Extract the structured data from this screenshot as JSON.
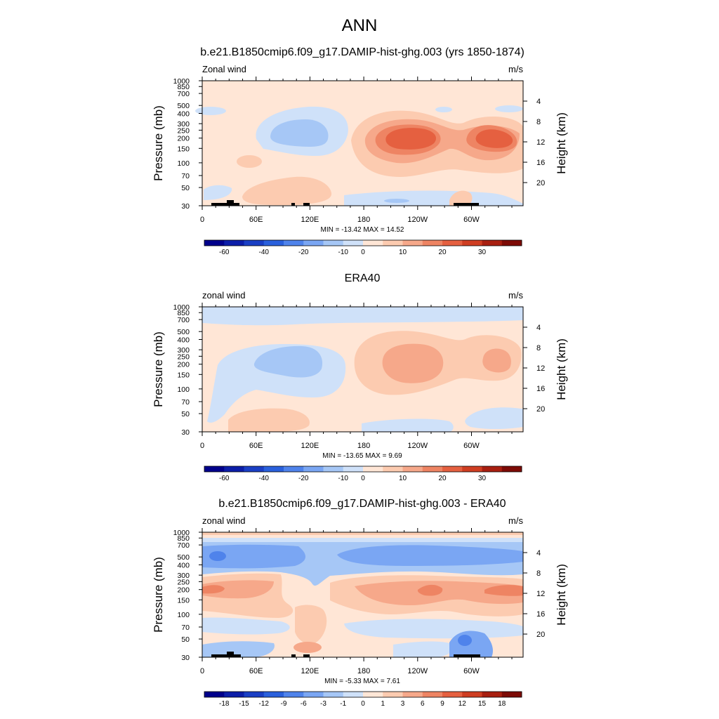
{
  "figure": {
    "main_title": "ANN",
    "colors": {
      "wind_scale": [
        "#00008b",
        "#0c1ea8",
        "#1a3fc4",
        "#2a60dc",
        "#4f83eb",
        "#7aa6f3",
        "#a6c7f6",
        "#cfe1f9",
        "#ffe6d6",
        "#fccbb0",
        "#f6a88a",
        "#ee8463",
        "#e56040",
        "#cf3e22",
        "#a81f10",
        "#7d0b06"
      ],
      "diff_scale": [
        "#00008b",
        "#0c1ea8",
        "#1a3fc4",
        "#2a60dc",
        "#4f83eb",
        "#7aa6f3",
        "#a6c7f6",
        "#cfe1f9",
        "#ffe6d6",
        "#fccbb0",
        "#f6a88a",
        "#ee8463",
        "#e56040",
        "#cf3e22",
        "#a81f10",
        "#7d0b06"
      ],
      "topography": "#000000"
    }
  },
  "chart_data": [
    {
      "type": "contour",
      "title": "b.e21.B1850cmip6.f09_g17.DAMIP-hist-ghg.003 (yrs 1850-1874)",
      "left_label": "Zonal wind",
      "right_label": "m/s",
      "ylabel": "Pressure (mb)",
      "ylabel_right": "Height (km)",
      "x_ticks": [
        "0",
        "60E",
        "120E",
        "180",
        "120W",
        "60W"
      ],
      "y_ticks": [
        "30",
        "50",
        "70",
        "100",
        "150",
        "200",
        "250",
        "300",
        "400",
        "500",
        "700",
        "850",
        "1000"
      ],
      "y_right_ticks": [
        "20",
        "16",
        "12",
        "8",
        "4"
      ],
      "stats": "MIN = -13.42  MAX =  14.52",
      "colorbar_labels": [
        "-60",
        "-40",
        "-20",
        "-10",
        "0",
        "10",
        "20",
        "30"
      ],
      "scale": "wind_scale",
      "xlim": [
        0,
        357.5
      ],
      "ylim": [
        1000,
        30
      ],
      "y_scale": "log",
      "min": -13.42,
      "max": 14.52
    },
    {
      "type": "contour",
      "title": "ERA40",
      "left_label": "zonal wind",
      "right_label": "m/s",
      "ylabel": "Pressure (mb)",
      "ylabel_right": "Height (km)",
      "x_ticks": [
        "0",
        "60E",
        "120E",
        "180",
        "120W",
        "60W"
      ],
      "y_ticks": [
        "30",
        "50",
        "70",
        "100",
        "150",
        "200",
        "250",
        "300",
        "400",
        "500",
        "700",
        "850",
        "1000"
      ],
      "y_right_ticks": [
        "20",
        "16",
        "12",
        "8",
        "4"
      ],
      "stats": "MIN = -13.65  MAX =   9.69",
      "colorbar_labels": [
        "-60",
        "-40",
        "-20",
        "-10",
        "0",
        "10",
        "20",
        "30"
      ],
      "scale": "wind_scale",
      "xlim": [
        0,
        357.5
      ],
      "ylim": [
        1000,
        30
      ],
      "y_scale": "log",
      "min": -13.65,
      "max": 9.69
    },
    {
      "type": "contour",
      "title": "b.e21.B1850cmip6.f09_g17.DAMIP-hist-ghg.003 - ERA40",
      "left_label": "zonal wind",
      "right_label": "m/s",
      "ylabel": "Pressure (mb)",
      "ylabel_right": "Height (km)",
      "x_ticks": [
        "0",
        "60E",
        "120E",
        "180",
        "120W",
        "60W"
      ],
      "y_ticks": [
        "30",
        "50",
        "70",
        "100",
        "150",
        "200",
        "250",
        "300",
        "400",
        "500",
        "700",
        "850",
        "1000"
      ],
      "y_right_ticks": [
        "20",
        "16",
        "12",
        "8",
        "4"
      ],
      "stats": "MIN =  -5.33  MAX =   7.61",
      "colorbar_labels": [
        "-18",
        "-15",
        "-12",
        "-9",
        "-6",
        "-3",
        "-1",
        "0",
        "1",
        "3",
        "6",
        "9",
        "12",
        "15",
        "18"
      ],
      "scale": "diff_scale",
      "xlim": [
        0,
        357.5
      ],
      "ylim": [
        1000,
        30
      ],
      "y_scale": "log",
      "min": -5.33,
      "max": 7.61
    }
  ]
}
